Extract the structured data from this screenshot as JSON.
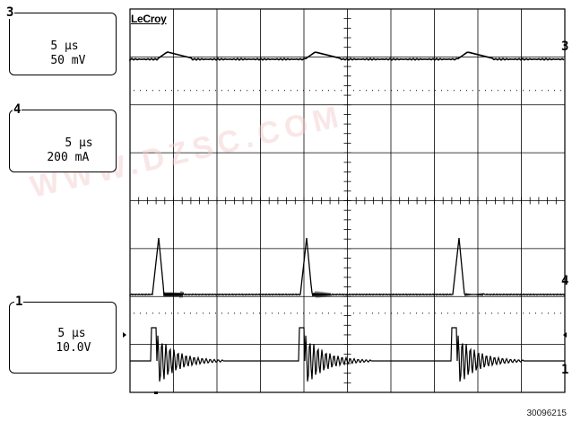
{
  "brand": "LeCroy",
  "watermark": "WWW.DZSC.COM",
  "figure_id": "30096215",
  "channels": [
    {
      "num": "3",
      "timebase": "5 μs",
      "scale": "50 mV"
    },
    {
      "num": "4",
      "timebase": "5 μs",
      "scale": "200 mA"
    },
    {
      "num": "1",
      "timebase": "5 μs",
      "scale": "10.0V"
    }
  ],
  "right_markers": [
    "3",
    "4",
    "1"
  ],
  "grid": {
    "divisions_x": 10,
    "divisions_y": 8
  },
  "colors": {
    "trace": "#000000",
    "grid": "#000000",
    "background": "#ffffff"
  }
}
